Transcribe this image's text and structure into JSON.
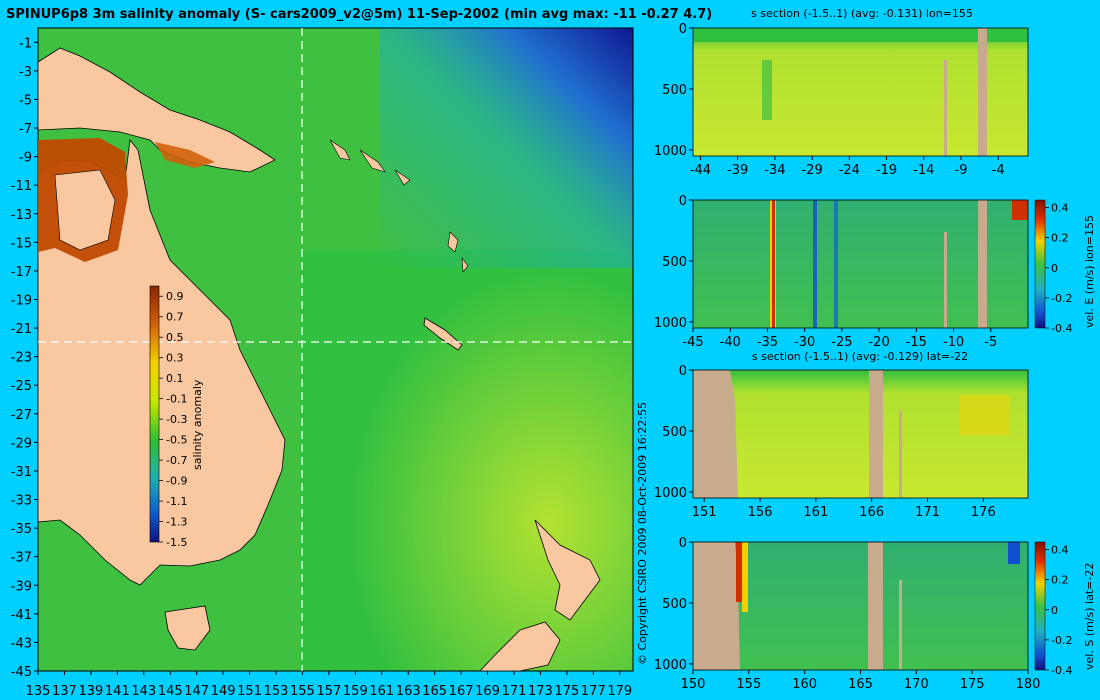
{
  "colors": {
    "background": "#00d0ff",
    "land": "#f9c8a0",
    "section_land": "#c8aa8c",
    "dashed": "#ffffff",
    "anomaly_high": "#8b2500",
    "anomaly_low": "#1a1a9a"
  },
  "chart_data": [
    {
      "type": "heatmap",
      "panel": "map",
      "title": "SPINUP6p8 3m salinity anomaly (S- cars2009_v2@5m) 11-Sep-2002 (min avg max: -11 -0.27 4.7)",
      "xlim": [
        135,
        180
      ],
      "ylim": [
        -45,
        0
      ],
      "x_ticks": [
        "135",
        "137",
        "139",
        "141",
        "143",
        "145",
        "147",
        "149",
        "151",
        "153",
        "155",
        "157",
        "159",
        "161",
        "163",
        "165",
        "167",
        "169",
        "171",
        "173",
        "175",
        "177",
        "179"
      ],
      "y_ticks": [
        "-1",
        "-3",
        "-5",
        "-7",
        "-9",
        "-11",
        "-13",
        "-15",
        "-17",
        "-19",
        "-21",
        "-23",
        "-25",
        "-27",
        "-29",
        "-31",
        "-33",
        "-35",
        "-37",
        "-39",
        "-41",
        "-43",
        "-45"
      ],
      "section_lines": {
        "lon": 155,
        "lat": -22
      },
      "colorbar": {
        "label": "salinity anomaly",
        "ticks": [
          "0.9",
          "0.7",
          "0.5",
          "0.3",
          "0.1",
          "-0.1",
          "-0.3",
          "-0.5",
          "-0.7",
          "-0.9",
          "-1.1",
          "-1.3",
          "-1.5"
        ],
        "range": [
          -1.5,
          1.0
        ]
      },
      "copyright": "© Copyright CSIRO 2009   08-Oct-2009 16:22:55"
    },
    {
      "type": "heatmap",
      "panel": "s-section-lon",
      "title": "s section (-1.5..1) (avg: -0.131) lon=155",
      "y_ticks": [
        "0",
        "500",
        "1000"
      ],
      "x_ticks": [
        "-44",
        "-39",
        "-34",
        "-29",
        "-24",
        "-19",
        "-14",
        "-9",
        "-4"
      ],
      "xlim": [
        -45,
        0
      ],
      "ylim": [
        1050,
        0
      ]
    },
    {
      "type": "heatmap",
      "panel": "vel-e-section",
      "y_ticks": [
        "0",
        "500",
        "1000"
      ],
      "x_ticks": [
        "-45",
        "-40",
        "-35",
        "-30",
        "-25",
        "-20",
        "-15",
        "-10",
        "-5"
      ],
      "xlim": [
        -45,
        0
      ],
      "ylim": [
        1050,
        0
      ],
      "colorbar": {
        "label": "vel. E (m/s) lon=155",
        "ticks": [
          "0.4",
          "0.2",
          "0",
          "-0.2",
          "-0.4"
        ],
        "range": [
          -0.4,
          0.45
        ]
      }
    },
    {
      "type": "heatmap",
      "panel": "s-section-lat",
      "title": "s section (-1.5..1) (avg: -0.129) lat=-22",
      "y_ticks": [
        "0",
        "500",
        "1000"
      ],
      "x_ticks": [
        "151",
        "156",
        "161",
        "166",
        "171",
        "176"
      ],
      "xlim": [
        150,
        180
      ],
      "ylim": [
        1050,
        0
      ]
    },
    {
      "type": "heatmap",
      "panel": "vel-s-section",
      "y_ticks": [
        "0",
        "500",
        "1000"
      ],
      "x_ticks": [
        "150",
        "155",
        "160",
        "165",
        "170",
        "175",
        "180"
      ],
      "xlim": [
        150,
        180
      ],
      "ylim": [
        1050,
        0
      ],
      "colorbar": {
        "label": "vel. S (m/s) lat=-22",
        "ticks": [
          "0.4",
          "0.2",
          "0",
          "-0.2",
          "-0.4"
        ],
        "range": [
          -0.4,
          0.45
        ]
      }
    }
  ]
}
